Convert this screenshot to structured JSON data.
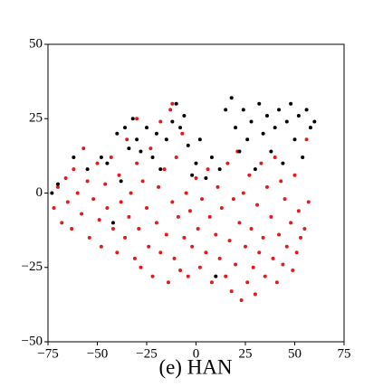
{
  "chart_data": {
    "type": "scatter",
    "caption": "(e) HAN",
    "xlim": [
      -75,
      75
    ],
    "ylim": [
      -50,
      50
    ],
    "xticks": [
      {
        "value": -75,
        "label": "−75"
      },
      {
        "value": -50,
        "label": "−50"
      },
      {
        "value": -25,
        "label": "−25"
      },
      0,
      25,
      50,
      75
    ],
    "yticks": [
      {
        "value": -50,
        "label": "−50"
      },
      {
        "value": -25,
        "label": "−25"
      },
      0,
      25,
      50
    ],
    "series": [
      {
        "color": "#e31a1c",
        "x": [
          -72,
          -70,
          -68,
          -66,
          -65,
          -63,
          -62,
          -60,
          -58,
          -57,
          -55,
          -54,
          -52,
          -50,
          -49,
          -48,
          -46,
          -45,
          -43,
          -42,
          -40,
          -39,
          -38,
          -36,
          -35,
          -34,
          -33,
          -31,
          -30,
          -29,
          -28,
          -27,
          -25,
          -24,
          -23,
          -22,
          -20,
          -19,
          -18,
          -16,
          -15,
          -14,
          -13,
          -12,
          -11,
          -10,
          -9,
          -8,
          -7,
          -6,
          -5,
          -4,
          -3,
          -2,
          0,
          1,
          2,
          3,
          5,
          6,
          7,
          8,
          10,
          11,
          12,
          13,
          15,
          16,
          17,
          18,
          19,
          20,
          21,
          22,
          23,
          24,
          25,
          26,
          27,
          28,
          29,
          30,
          31,
          32,
          33,
          34,
          35,
          36,
          38,
          39,
          40,
          41,
          42,
          43,
          44,
          45,
          46,
          48,
          49,
          50,
          51,
          52,
          53,
          55,
          56,
          57,
          58,
          -12,
          -18,
          -30
        ],
        "values": [
          -5,
          2,
          -10,
          5,
          -3,
          -12,
          8,
          0,
          -7,
          15,
          4,
          -15,
          -2,
          10,
          -9,
          -18,
          3,
          -5,
          12,
          -12,
          -20,
          6,
          -3,
          -15,
          18,
          -8,
          0,
          -22,
          10,
          -12,
          -25,
          4,
          -5,
          -18,
          15,
          -28,
          -10,
          2,
          -20,
          8,
          -14,
          -30,
          28,
          -3,
          -22,
          12,
          -8,
          -26,
          20,
          -15,
          0,
          -28,
          -6,
          -18,
          5,
          -12,
          -25,
          -2,
          -20,
          8,
          -8,
          -30,
          -14,
          2,
          -22,
          -5,
          -28,
          10,
          -16,
          -33,
          -2,
          -24,
          14,
          -10,
          -36,
          0,
          -18,
          -30,
          6,
          -12,
          -25,
          -34,
          -4,
          -20,
          10,
          -15,
          -28,
          2,
          -8,
          -22,
          12,
          -30,
          -14,
          4,
          -24,
          -2,
          -18,
          -10,
          -26,
          6,
          -20,
          -6,
          -15,
          -12,
          18,
          -3,
          22,
          30,
          24,
          25
        ]
      },
      {
        "color": "#000000",
        "x": [
          -73,
          -70,
          -62,
          -55,
          -48,
          -45,
          -40,
          -36,
          -34,
          -32,
          -30,
          -28,
          -25,
          -22,
          -20,
          -18,
          -15,
          -12,
          -10,
          -8,
          -6,
          -4,
          -2,
          0,
          2,
          5,
          8,
          12,
          15,
          18,
          20,
          22,
          24,
          26,
          28,
          30,
          32,
          34,
          36,
          38,
          40,
          42,
          44,
          46,
          48,
          50,
          52,
          54,
          56,
          58,
          60,
          -42,
          -38,
          10
        ],
        "values": [
          0,
          3,
          12,
          8,
          12,
          10,
          20,
          22,
          15,
          25,
          18,
          14,
          22,
          12,
          20,
          8,
          18,
          24,
          30,
          22,
          26,
          16,
          6,
          10,
          18,
          5,
          12,
          8,
          28,
          32,
          22,
          14,
          28,
          18,
          24,
          8,
          30,
          20,
          26,
          14,
          22,
          28,
          10,
          24,
          30,
          18,
          26,
          12,
          28,
          22,
          24,
          -10,
          4,
          -28
        ]
      }
    ]
  }
}
